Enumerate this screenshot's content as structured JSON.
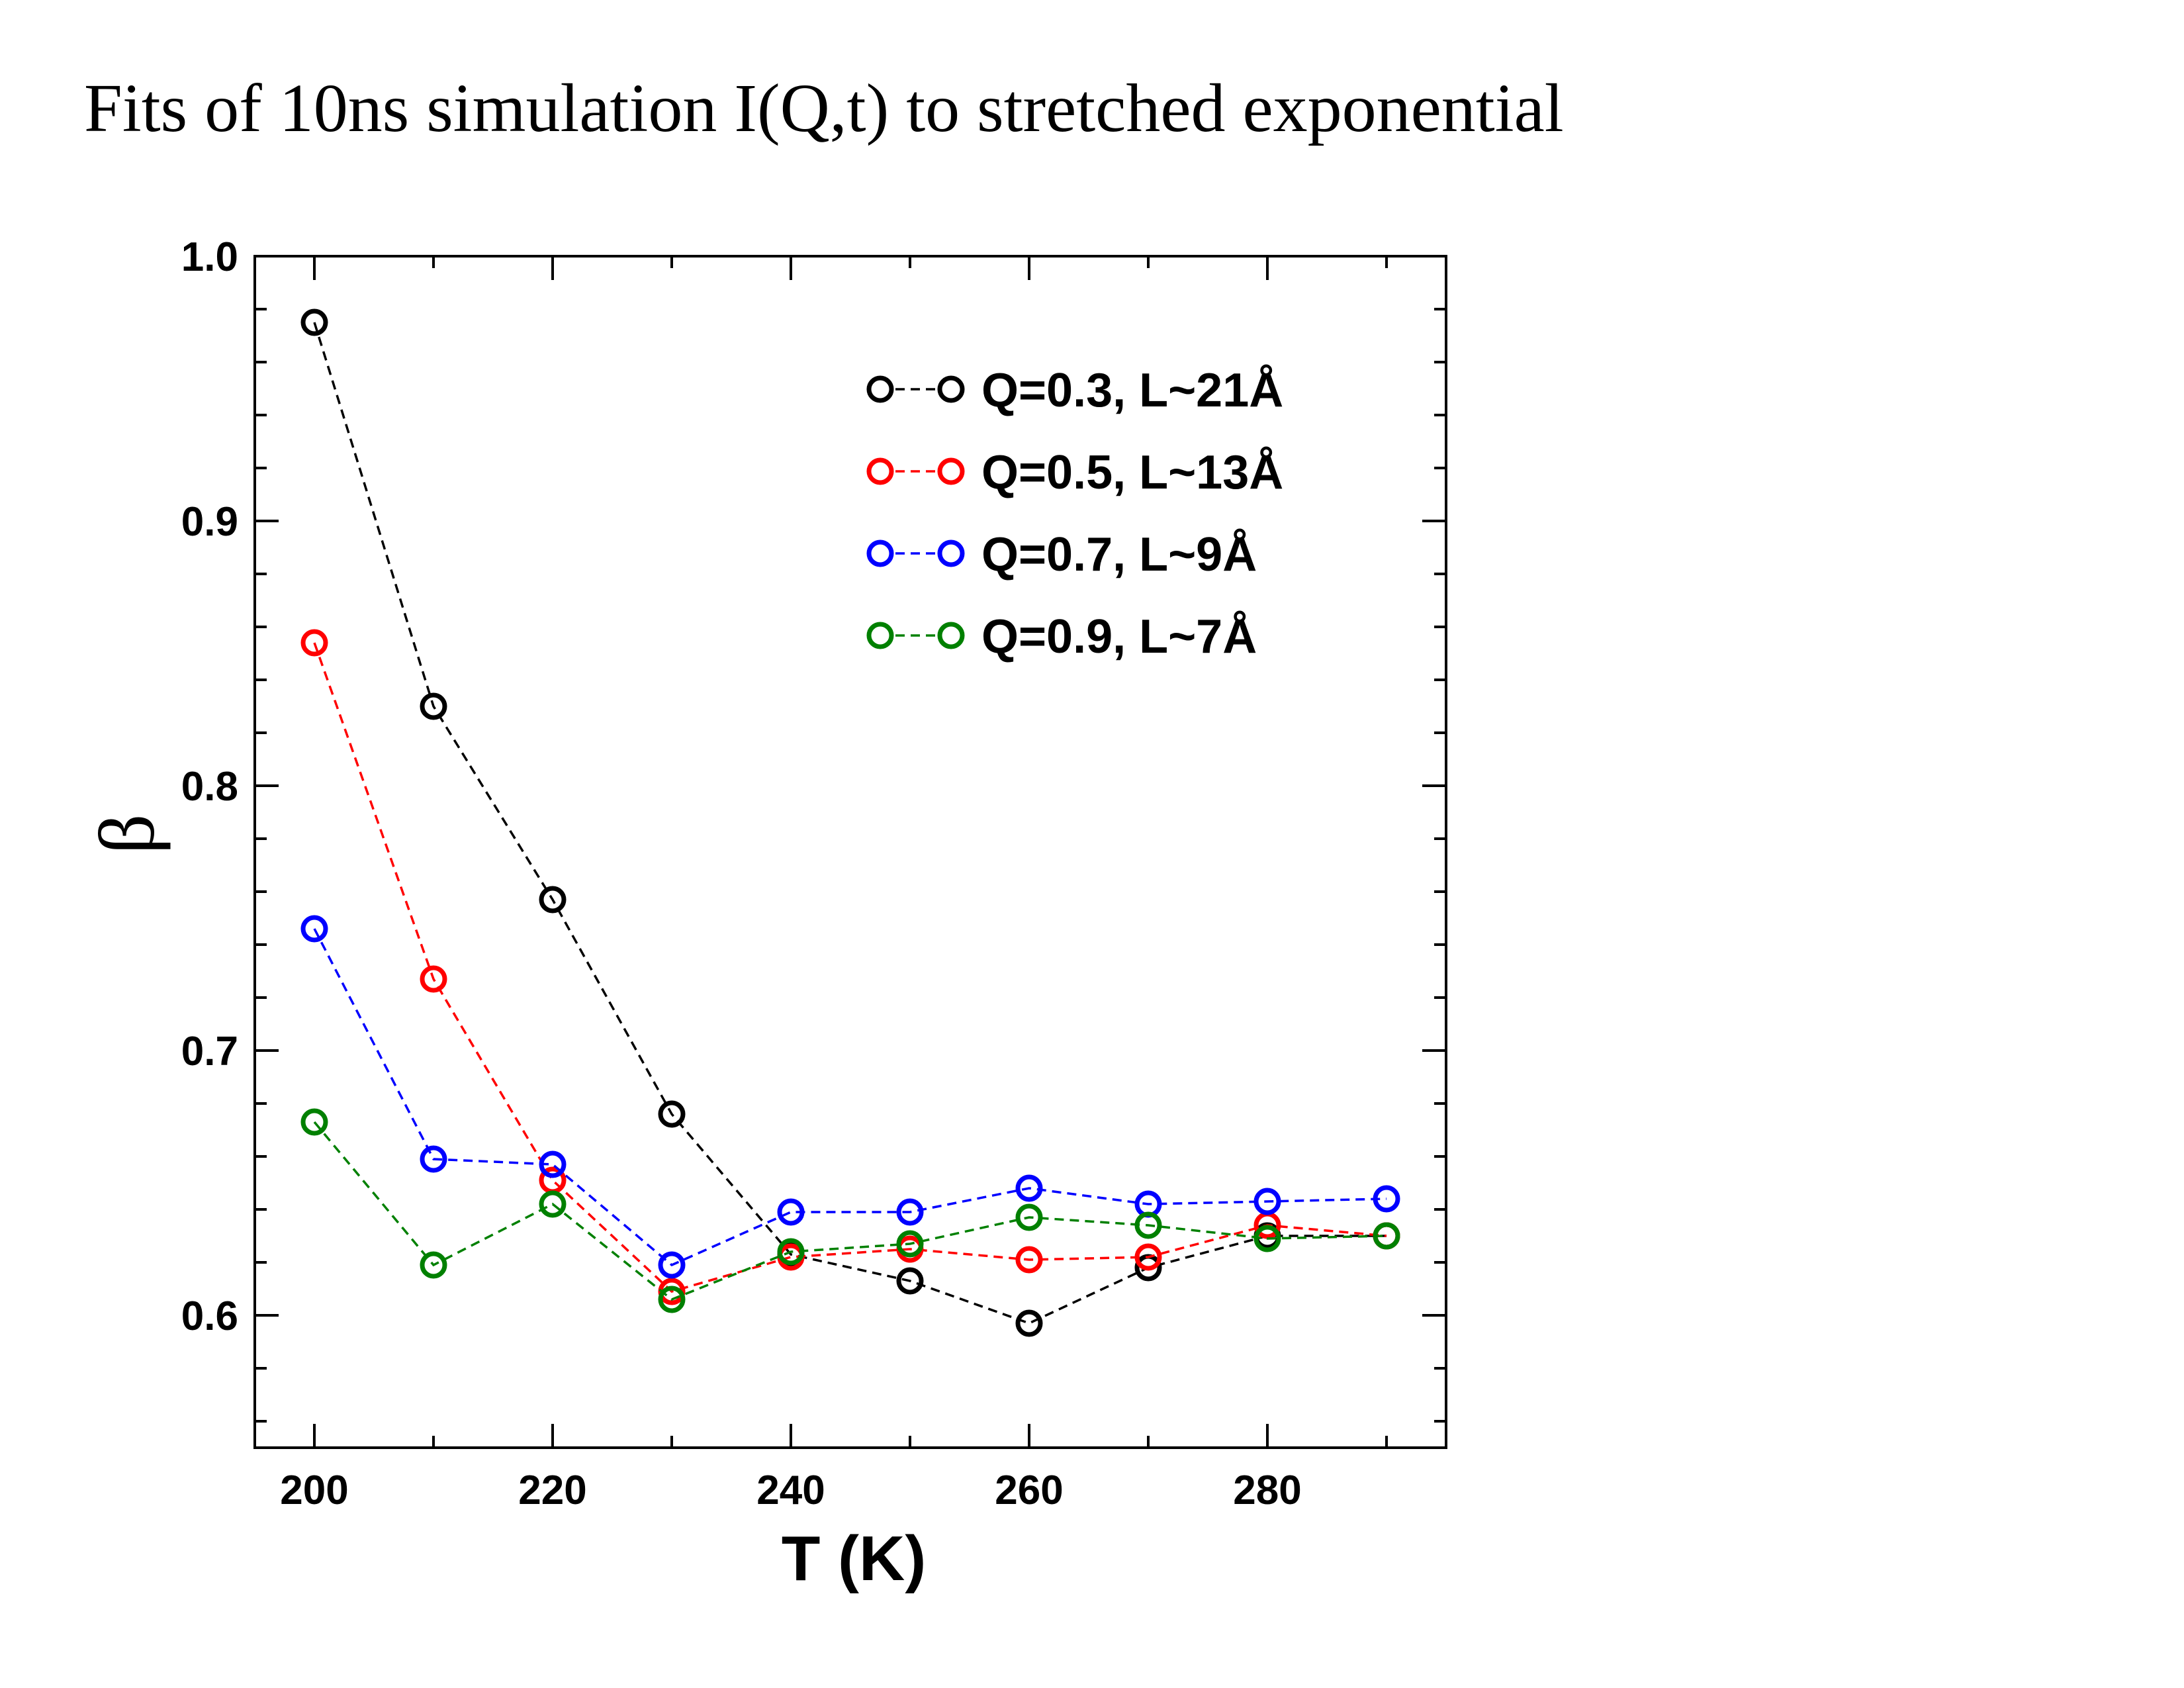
{
  "page": {
    "title": "Fits of 10ns simulation I(Q,t) to stretched exponential"
  },
  "chart_data": {
    "type": "line",
    "title": "Fits of 10ns simulation I(Q,t) to stretched exponential",
    "xlabel": "T (K)",
    "ylabel": "β",
    "xlim": [
      195,
      295
    ],
    "ylim": [
      0.55,
      1.0
    ],
    "xticks": [
      200,
      220,
      240,
      260,
      280
    ],
    "yticks": [
      0.6,
      0.7,
      0.8,
      0.9,
      1.0
    ],
    "ytick_labels": [
      "0.6",
      "0.7",
      "0.8",
      "0.9",
      "1.0"
    ],
    "x": [
      200,
      210,
      220,
      230,
      240,
      250,
      260,
      270,
      280,
      290
    ],
    "legend_position": "top-right",
    "grid": false,
    "series": [
      {
        "name": "Q=0.3, L~21Å",
        "color": "#000000",
        "x": [
          200,
          210,
          220,
          230,
          240,
          250,
          260,
          270,
          280,
          290
        ],
        "values": [
          0.975,
          0.83,
          0.757,
          0.676,
          0.623,
          0.613,
          0.597,
          0.618,
          0.63,
          0.63
        ]
      },
      {
        "name": "Q=0.5, L~13Å",
        "color": "#ff0000",
        "x": [
          200,
          210,
          220,
          230,
          240,
          250,
          260,
          270,
          280,
          290
        ],
        "values": [
          0.854,
          0.727,
          0.651,
          0.609,
          0.622,
          0.625,
          0.621,
          0.622,
          0.634,
          0.63
        ]
      },
      {
        "name": "Q=0.7, L~9Å",
        "color": "#0000ff",
        "x": [
          200,
          210,
          220,
          230,
          240,
          250,
          260,
          270,
          280,
          290
        ],
        "values": [
          0.746,
          0.659,
          0.657,
          0.619,
          0.639,
          0.639,
          0.648,
          0.642,
          0.643,
          0.644
        ]
      },
      {
        "name": "Q=0.9, L~7Å",
        "color": "#008000",
        "x": [
          200,
          210,
          220,
          230,
          240,
          250,
          260,
          270,
          280,
          290
        ],
        "values": [
          0.673,
          0.619,
          0.642,
          0.606,
          0.624,
          0.627,
          0.637,
          0.634,
          0.629,
          0.63
        ]
      }
    ]
  }
}
